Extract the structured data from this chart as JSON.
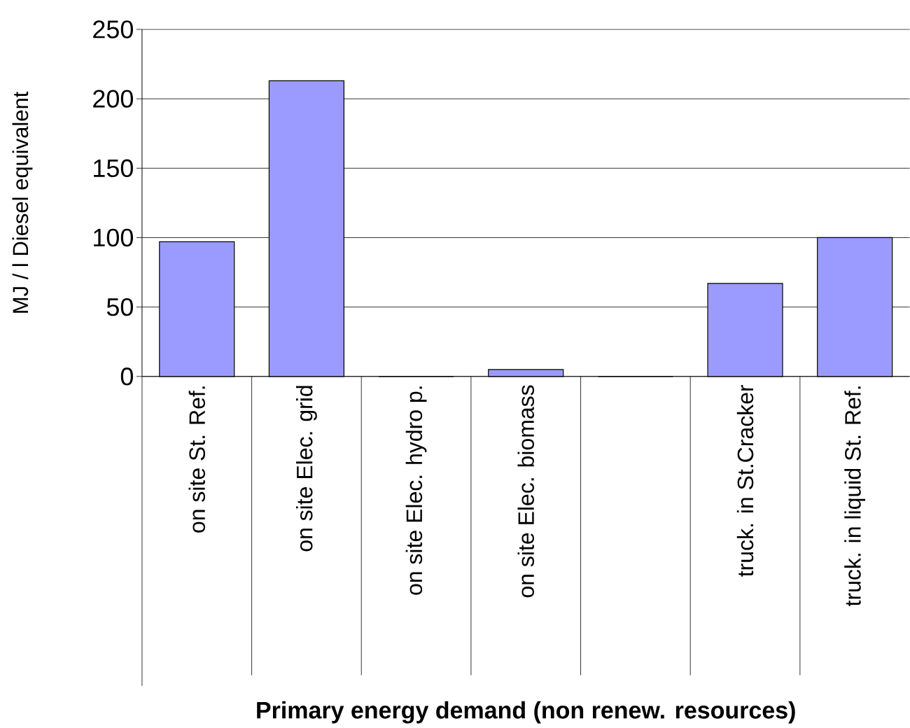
{
  "chart_data": {
    "type": "bar",
    "xlabel": "Primary energy demand (non renew. resources)",
    "ylabel": "MJ / l Diesel equivalent",
    "categories": [
      "on site St. Ref.",
      "on site Elec. grid",
      "on site Elec. hydro p.",
      "on site Elec. biomass",
      null,
      "truck. in St.Cracker",
      "truck. in liquid St. Ref."
    ],
    "values": [
      97,
      213,
      0,
      5,
      0,
      67,
      100
    ],
    "color": "#9b9bff",
    "ylim": [
      0,
      250
    ],
    "yticks": [
      0,
      50,
      100,
      150,
      200,
      250
    ],
    "grid": "y"
  }
}
